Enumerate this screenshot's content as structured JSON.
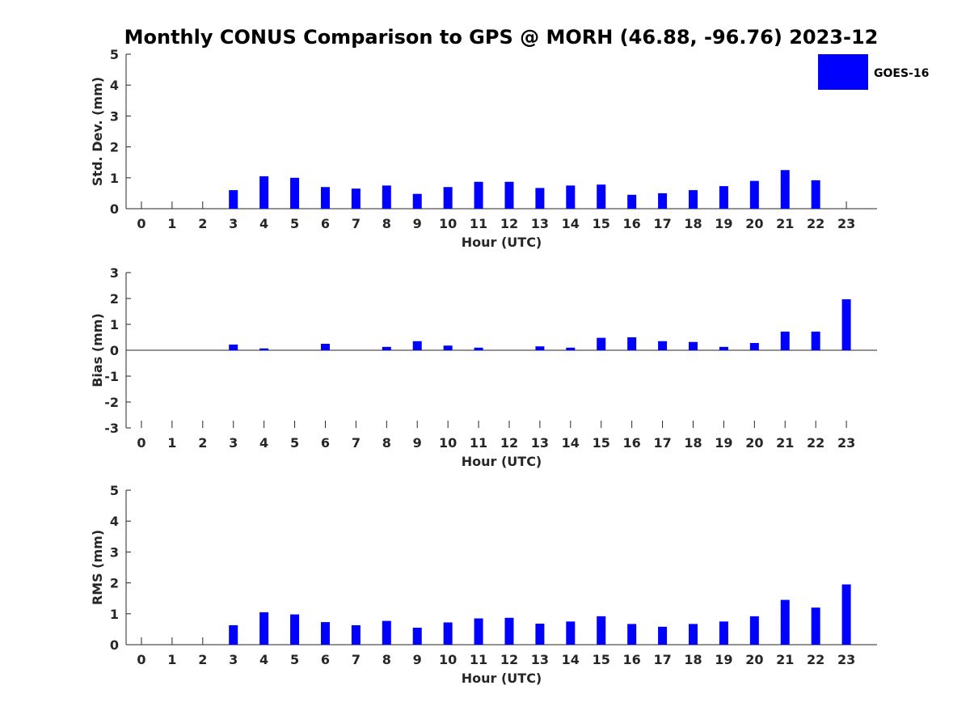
{
  "title": "Monthly CONUS Comparison to GPS @ MORH (46.88, -96.76) 2023-12",
  "legend": {
    "label": "GOES-16",
    "color": "#0000ff",
    "placement": "top-right"
  },
  "chart_data": [
    {
      "type": "bar",
      "series_name": "GOES-16",
      "color": "#0000ff",
      "xlabel": "Hour (UTC)",
      "ylabel": "Std. Dev. (mm)",
      "categories": [
        0,
        1,
        2,
        3,
        4,
        5,
        6,
        7,
        8,
        9,
        10,
        11,
        12,
        13,
        14,
        15,
        16,
        17,
        18,
        19,
        20,
        21,
        22,
        23
      ],
      "values": [
        null,
        null,
        null,
        0.6,
        1.05,
        1.0,
        0.7,
        0.65,
        0.75,
        0.48,
        0.7,
        0.87,
        0.87,
        0.67,
        0.75,
        0.78,
        0.45,
        0.5,
        0.6,
        0.73,
        0.9,
        1.25,
        0.92,
        null
      ],
      "ylim": [
        0,
        5
      ],
      "yticks": [
        0,
        1,
        2,
        3,
        4,
        5
      ],
      "grid": false
    },
    {
      "type": "bar",
      "series_name": "GOES-16",
      "color": "#0000ff",
      "xlabel": "Hour (UTC)",
      "ylabel": "Bias (mm)",
      "categories": [
        0,
        1,
        2,
        3,
        4,
        5,
        6,
        7,
        8,
        9,
        10,
        11,
        12,
        13,
        14,
        15,
        16,
        17,
        18,
        19,
        20,
        21,
        22,
        23
      ],
      "values": [
        null,
        null,
        null,
        0.22,
        0.07,
        0.0,
        0.25,
        0.0,
        0.13,
        0.35,
        0.18,
        0.1,
        0.0,
        0.15,
        0.1,
        0.48,
        0.5,
        0.35,
        0.32,
        0.13,
        0.28,
        0.72,
        0.72,
        1.97
      ],
      "ylim": [
        -3,
        3
      ],
      "yticks": [
        -3,
        -2,
        -1,
        0,
        1,
        2,
        3
      ],
      "grid": false
    },
    {
      "type": "bar",
      "series_name": "GOES-16",
      "color": "#0000ff",
      "xlabel": "Hour (UTC)",
      "ylabel": "RMS (mm)",
      "categories": [
        0,
        1,
        2,
        3,
        4,
        5,
        6,
        7,
        8,
        9,
        10,
        11,
        12,
        13,
        14,
        15,
        16,
        17,
        18,
        19,
        20,
        21,
        22,
        23
      ],
      "values": [
        null,
        null,
        null,
        0.63,
        1.05,
        0.98,
        0.73,
        0.63,
        0.77,
        0.55,
        0.72,
        0.85,
        0.87,
        0.68,
        0.75,
        0.92,
        0.67,
        0.58,
        0.67,
        0.75,
        0.92,
        1.45,
        1.2,
        1.95
      ],
      "ylim": [
        0,
        5
      ],
      "yticks": [
        0,
        1,
        2,
        3,
        4,
        5
      ],
      "grid": false
    }
  ]
}
